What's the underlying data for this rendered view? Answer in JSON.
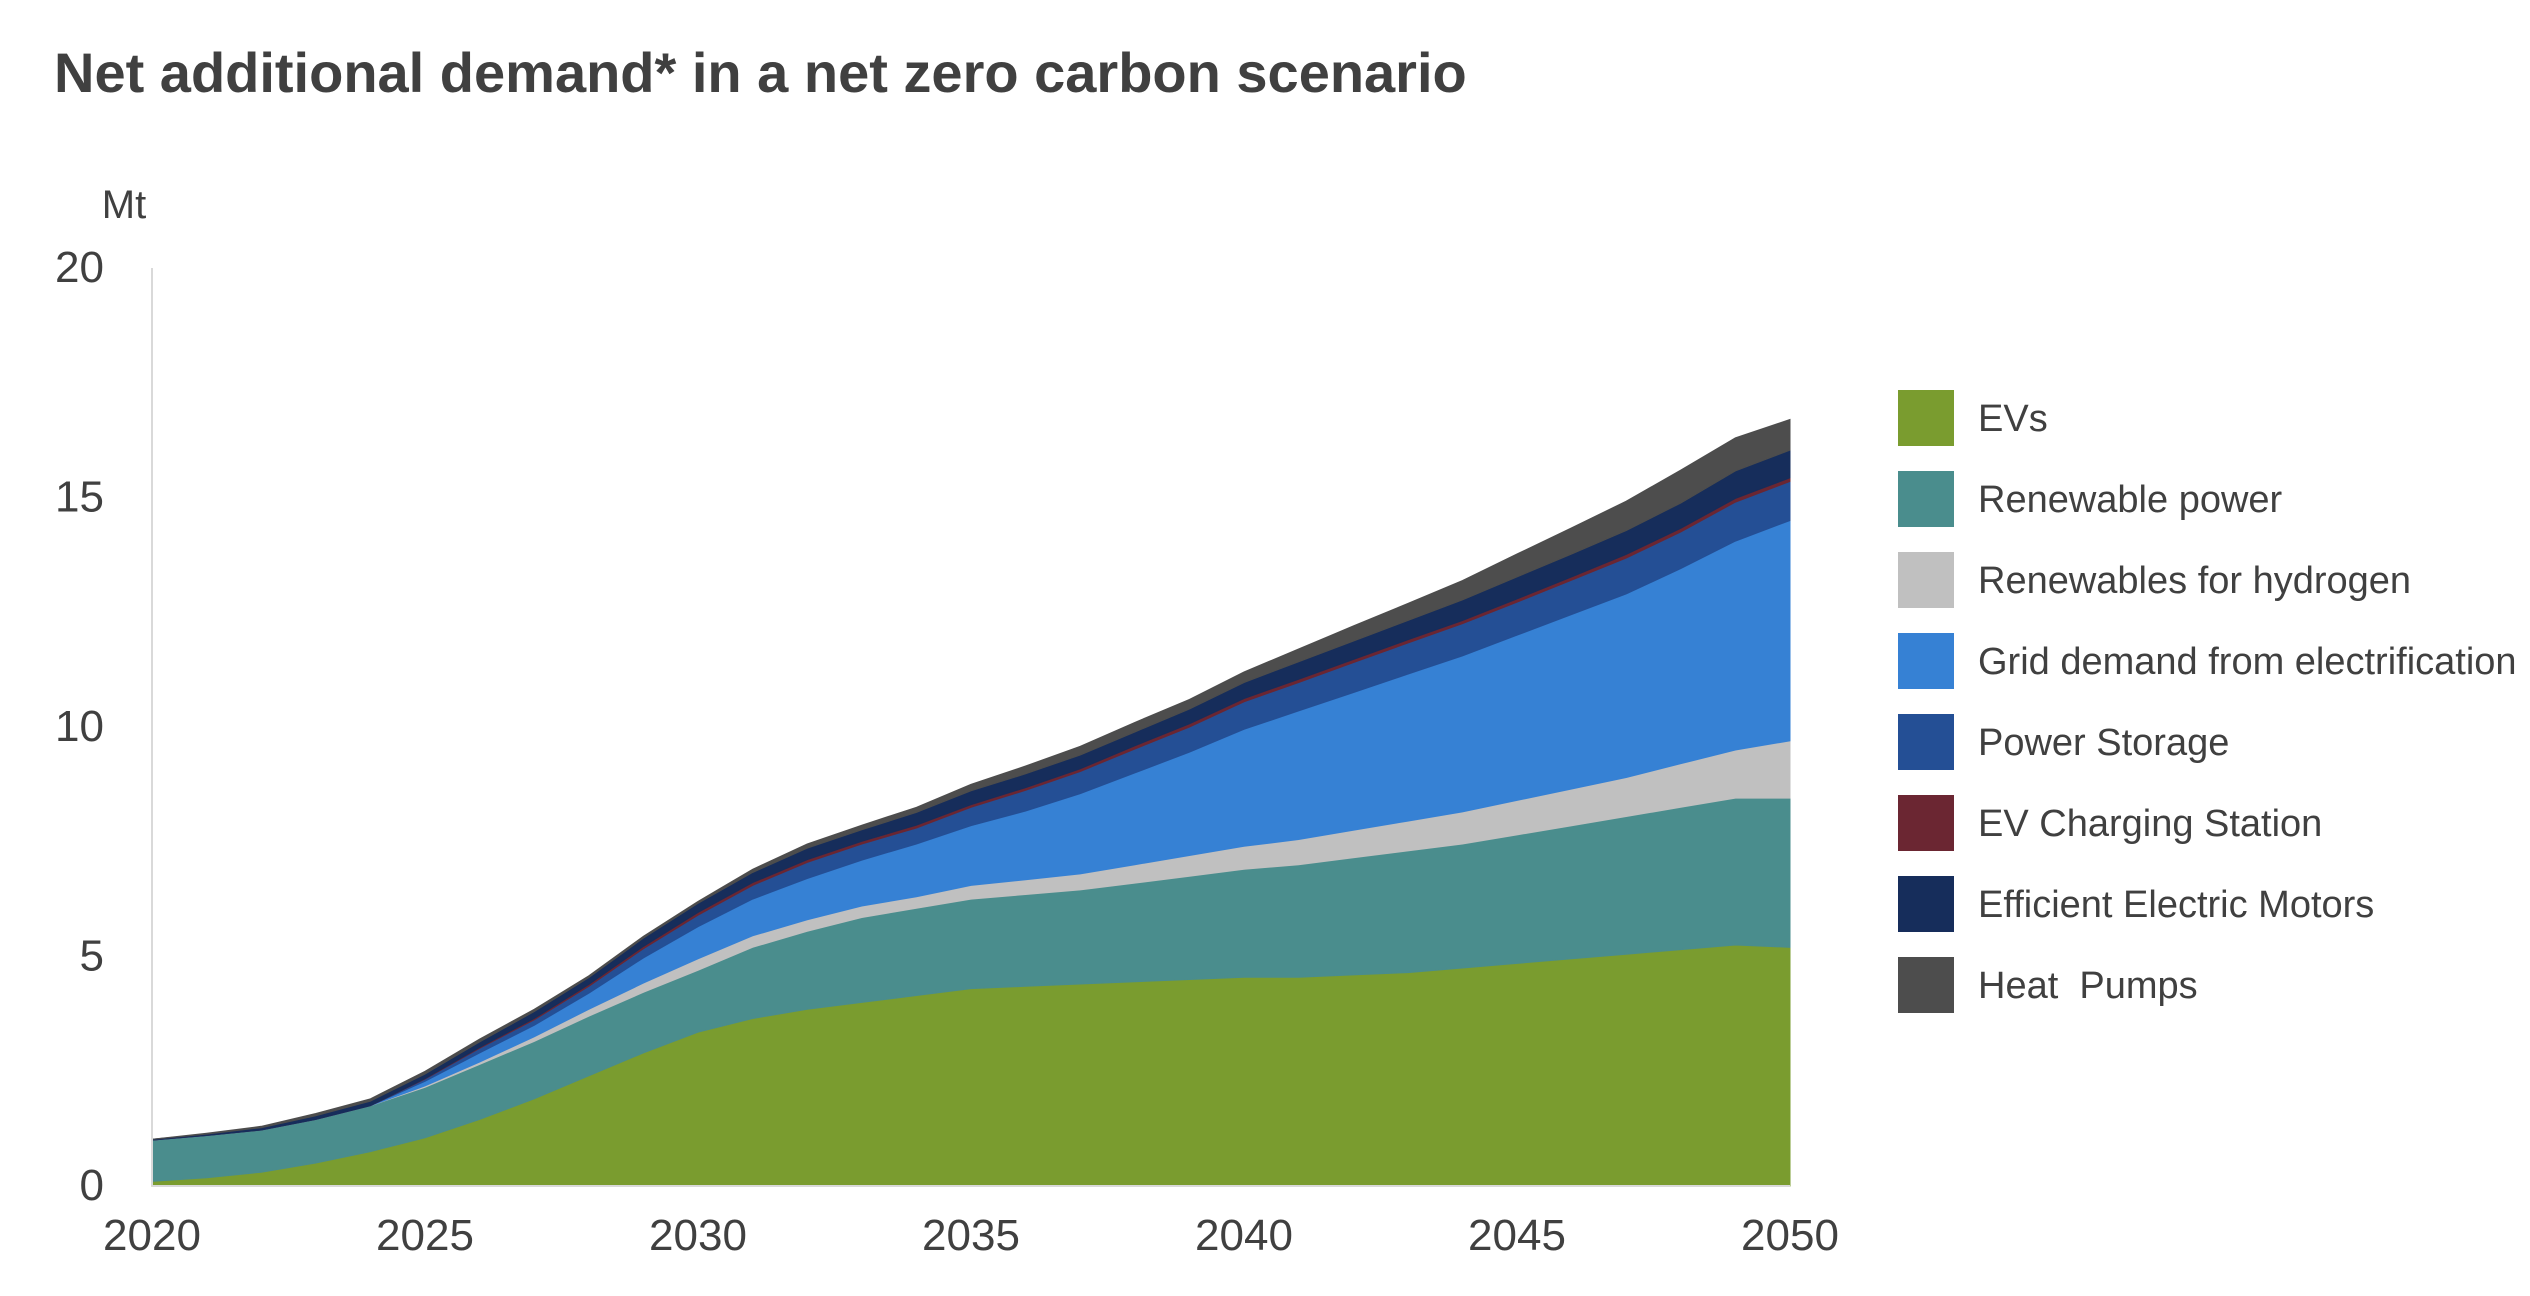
{
  "title": "Net additional demand* in a net zero carbon scenario",
  "chart_data": {
    "type": "area",
    "stacked": true,
    "title": "Net additional demand* in a net zero carbon scenario",
    "ylabel": "Mt",
    "xlabel": "",
    "xlim": [
      2020,
      2050
    ],
    "ylim": [
      0,
      20
    ],
    "x_ticks": [
      "2020",
      "2025",
      "2030",
      "2035",
      "2040",
      "2045",
      "2050"
    ],
    "y_ticks": [
      "0",
      "5",
      "10",
      "15",
      "20"
    ],
    "legend_position": "right",
    "grid": false,
    "x": [
      2020,
      2021,
      2022,
      2023,
      2024,
      2025,
      2026,
      2027,
      2028,
      2029,
      2030,
      2031,
      2032,
      2033,
      2034,
      2035,
      2036,
      2037,
      2038,
      2039,
      2040,
      2041,
      2042,
      2043,
      2044,
      2045,
      2046,
      2047,
      2048,
      2049,
      2050
    ],
    "series": [
      {
        "name": "EVs",
        "color": "#7a9c2f",
        "values": [
          0.1,
          0.18,
          0.3,
          0.5,
          0.75,
          1.05,
          1.45,
          1.9,
          2.4,
          2.9,
          3.35,
          3.65,
          3.85,
          4.0,
          4.15,
          4.3,
          4.35,
          4.4,
          4.45,
          4.5,
          4.55,
          4.55,
          4.6,
          4.65,
          4.75,
          4.85,
          4.95,
          5.05,
          5.15,
          5.25,
          5.2
        ]
      },
      {
        "name": "Renewable power",
        "color": "#4a8d8d",
        "values": [
          0.9,
          0.92,
          0.92,
          0.95,
          1.0,
          1.1,
          1.2,
          1.25,
          1.3,
          1.32,
          1.35,
          1.55,
          1.7,
          1.85,
          1.9,
          1.95,
          2.0,
          2.05,
          2.15,
          2.25,
          2.35,
          2.45,
          2.55,
          2.65,
          2.7,
          2.8,
          2.9,
          3.0,
          3.1,
          3.2,
          3.25
        ]
      },
      {
        "name": "Renewables for hydrogen",
        "color": "#c0c0c0",
        "values": [
          0,
          0,
          0,
          0,
          0,
          0.03,
          0.05,
          0.1,
          0.15,
          0.2,
          0.25,
          0.25,
          0.25,
          0.25,
          0.25,
          0.3,
          0.32,
          0.35,
          0.4,
          0.45,
          0.5,
          0.55,
          0.6,
          0.65,
          0.7,
          0.75,
          0.8,
          0.85,
          0.95,
          1.05,
          1.25
        ]
      },
      {
        "name": "Grid demand from electrification",
        "color": "#3681d4",
        "values": [
          0,
          0,
          0,
          0,
          0,
          0.1,
          0.2,
          0.25,
          0.35,
          0.55,
          0.7,
          0.8,
          0.9,
          1.0,
          1.15,
          1.3,
          1.5,
          1.75,
          2.0,
          2.25,
          2.55,
          2.8,
          3.0,
          3.2,
          3.4,
          3.6,
          3.8,
          4.0,
          4.25,
          4.55,
          4.8
        ]
      },
      {
        "name": "Power Storage",
        "color": "#244f95",
        "values": [
          0,
          0,
          0,
          0,
          0,
          0.05,
          0.1,
          0.12,
          0.15,
          0.2,
          0.25,
          0.3,
          0.35,
          0.35,
          0.35,
          0.4,
          0.45,
          0.48,
          0.52,
          0.55,
          0.6,
          0.62,
          0.65,
          0.68,
          0.7,
          0.72,
          0.75,
          0.78,
          0.8,
          0.85,
          0.85
        ]
      },
      {
        "name": "EV Charging Station",
        "color": "#6b2632",
        "values": [
          0,
          0,
          0,
          0,
          0,
          0.01,
          0.02,
          0.03,
          0.04,
          0.05,
          0.06,
          0.06,
          0.06,
          0.06,
          0.06,
          0.06,
          0.06,
          0.06,
          0.07,
          0.07,
          0.07,
          0.07,
          0.07,
          0.07,
          0.07,
          0.07,
          0.07,
          0.08,
          0.08,
          0.08,
          0.08
        ]
      },
      {
        "name": "Efficient Electric Motors",
        "color": "#162d5b",
        "values": [
          0.02,
          0.03,
          0.05,
          0.08,
          0.1,
          0.1,
          0.12,
          0.15,
          0.15,
          0.18,
          0.2,
          0.22,
          0.25,
          0.25,
          0.28,
          0.3,
          0.3,
          0.3,
          0.3,
          0.32,
          0.35,
          0.38,
          0.4,
          0.42,
          0.45,
          0.48,
          0.5,
          0.52,
          0.55,
          0.6,
          0.6
        ]
      },
      {
        "name": "Heat  Pumps",
        "color": "#4d4d4d",
        "values": [
          0,
          0.02,
          0.03,
          0.05,
          0.05,
          0.06,
          0.06,
          0.05,
          0.04,
          0.04,
          0.04,
          0.07,
          0.09,
          0.1,
          0.11,
          0.14,
          0.17,
          0.19,
          0.21,
          0.21,
          0.23,
          0.28,
          0.33,
          0.37,
          0.42,
          0.5,
          0.57,
          0.64,
          0.72,
          0.72,
          0.67
        ]
      }
    ]
  }
}
